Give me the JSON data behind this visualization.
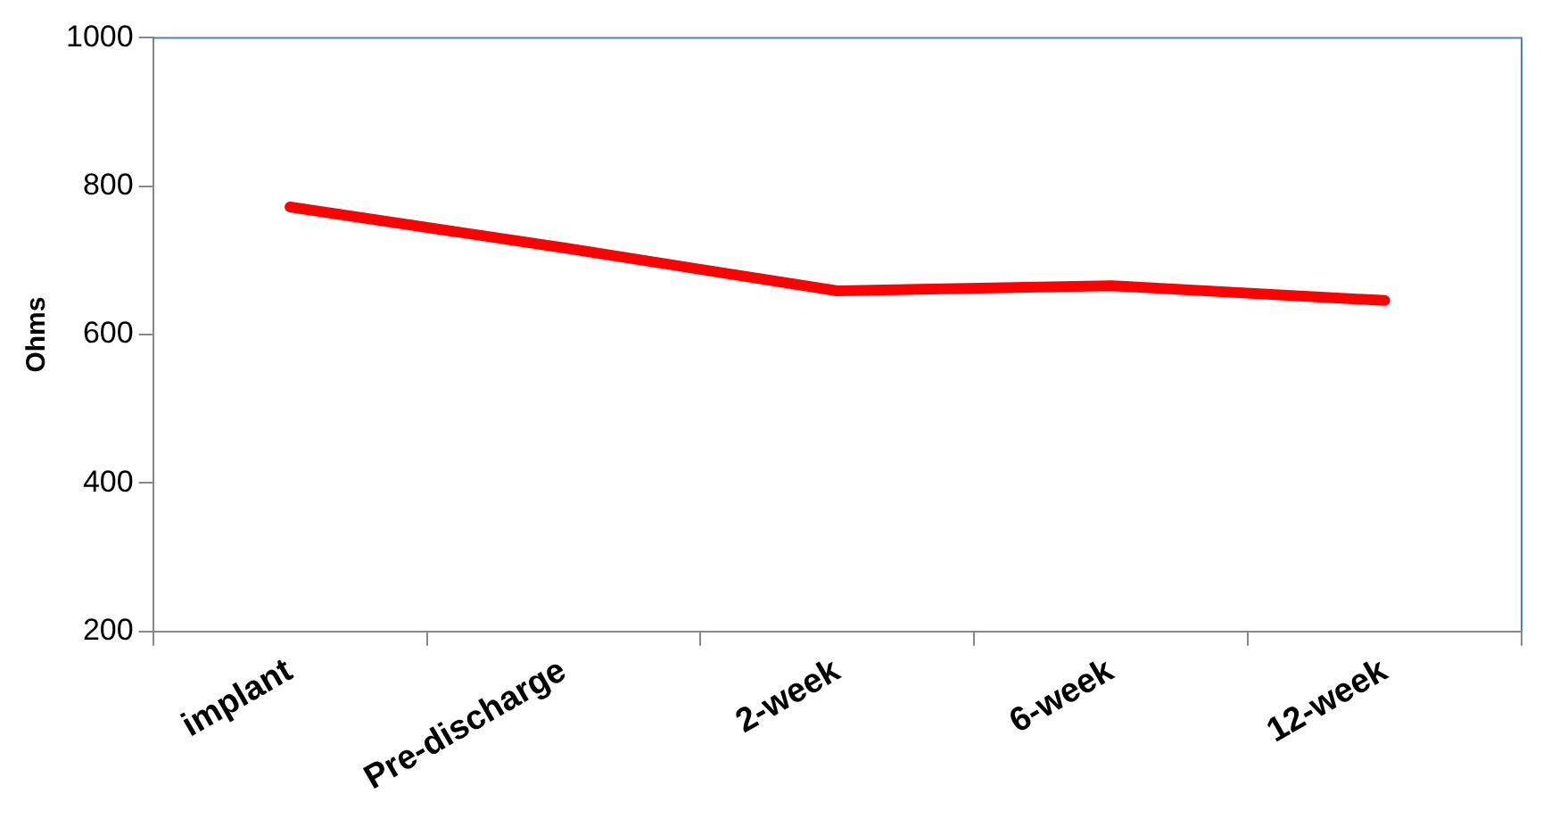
{
  "chart_data": {
    "type": "line",
    "ylabel": "Ohms",
    "categories": [
      "implant",
      "Pre-discharge",
      "2-week",
      "6-week",
      "12-week"
    ],
    "series": [
      {
        "color": "#ff0000",
        "values": [
          772,
          717,
          659,
          666,
          646
        ]
      }
    ],
    "ylim": [
      200,
      1000
    ],
    "yticks": [
      200,
      400,
      600,
      800,
      1000
    ],
    "grid": false,
    "legend": false,
    "marker": "none",
    "line_style": "solid"
  }
}
